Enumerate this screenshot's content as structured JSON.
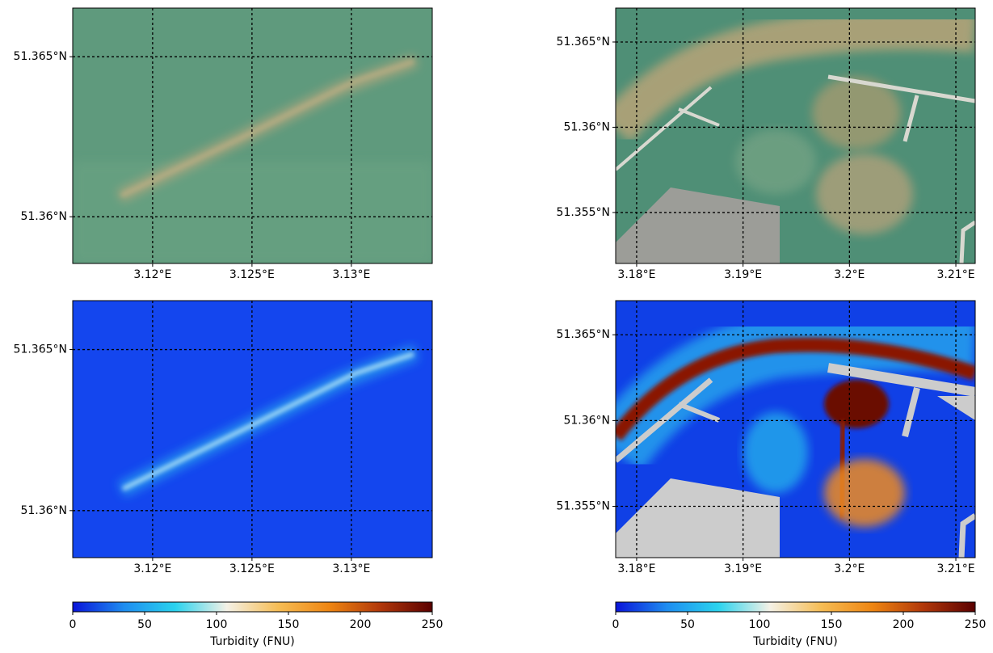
{
  "panels": [
    {
      "xlim": [
        3.11598,
        3.13407
      ],
      "ylim": [
        51.35854,
        51.36652
      ],
      "xticks": [
        {
          "value": 3.12,
          "label": "3.12°E"
        },
        {
          "value": 3.125,
          "label": "3.125°E"
        },
        {
          "value": 3.13,
          "label": "3.13°E"
        }
      ],
      "yticks": [
        {
          "value": 51.36,
          "label": "51.36°N"
        },
        {
          "value": 51.365,
          "label": "51.365°N"
        }
      ]
    },
    {
      "xlim": [
        3.17803,
        3.21182
      ],
      "ylim": [
        51.35201,
        51.36699
      ],
      "xticks": [
        {
          "value": 3.18,
          "label": "3.18°E"
        },
        {
          "value": 3.19,
          "label": "3.19°E"
        },
        {
          "value": 3.2,
          "label": "3.2°E"
        },
        {
          "value": 3.21,
          "label": "3.21°E"
        }
      ],
      "yticks": [
        {
          "value": 51.355,
          "label": "51.355°N"
        },
        {
          "value": 51.36,
          "label": "51.36°N"
        },
        {
          "value": 51.365,
          "label": "51.365°N"
        }
      ]
    },
    {
      "xlim": [
        3.11598,
        3.13407
      ],
      "ylim": [
        51.35854,
        51.36652
      ],
      "xticks": [
        {
          "value": 3.12,
          "label": "3.12°E"
        },
        {
          "value": 3.125,
          "label": "3.125°E"
        },
        {
          "value": 3.13,
          "label": "3.13°E"
        }
      ],
      "yticks": [
        {
          "value": 51.36,
          "label": "51.36°N"
        },
        {
          "value": 51.365,
          "label": "51.365°N"
        }
      ]
    },
    {
      "xlim": [
        3.17803,
        3.21182
      ],
      "ylim": [
        51.35201,
        51.36699
      ],
      "xticks": [
        {
          "value": 3.18,
          "label": "3.18°E"
        },
        {
          "value": 3.19,
          "label": "3.19°E"
        },
        {
          "value": 3.2,
          "label": "3.2°E"
        },
        {
          "value": 3.21,
          "label": "3.21°E"
        }
      ],
      "yticks": [
        {
          "value": 51.355,
          "label": "51.355°N"
        },
        {
          "value": 51.36,
          "label": "51.36°N"
        },
        {
          "value": 51.365,
          "label": "51.365°N"
        }
      ]
    }
  ],
  "colorbars": [
    {
      "lim": [
        0,
        250
      ],
      "ticks": [
        0,
        50,
        100,
        150,
        200,
        250
      ],
      "label": "Turbidity (FNU)",
      "colors": [
        "#0a14d9",
        "#1e8df0",
        "#2bd3ee",
        "#f4f1e6",
        "#f6bd55",
        "#ee8512",
        "#b0370a",
        "#5a0000"
      ]
    },
    {
      "lim": [
        0,
        250
      ],
      "ticks": [
        0,
        50,
        100,
        150,
        200,
        250
      ],
      "label": "Turbidity (FNU)",
      "colors": [
        "#0a14d9",
        "#1e8df0",
        "#2bd3ee",
        "#f4f1e6",
        "#f6bd55",
        "#ee8512",
        "#b0370a",
        "#5a0000"
      ]
    }
  ]
}
